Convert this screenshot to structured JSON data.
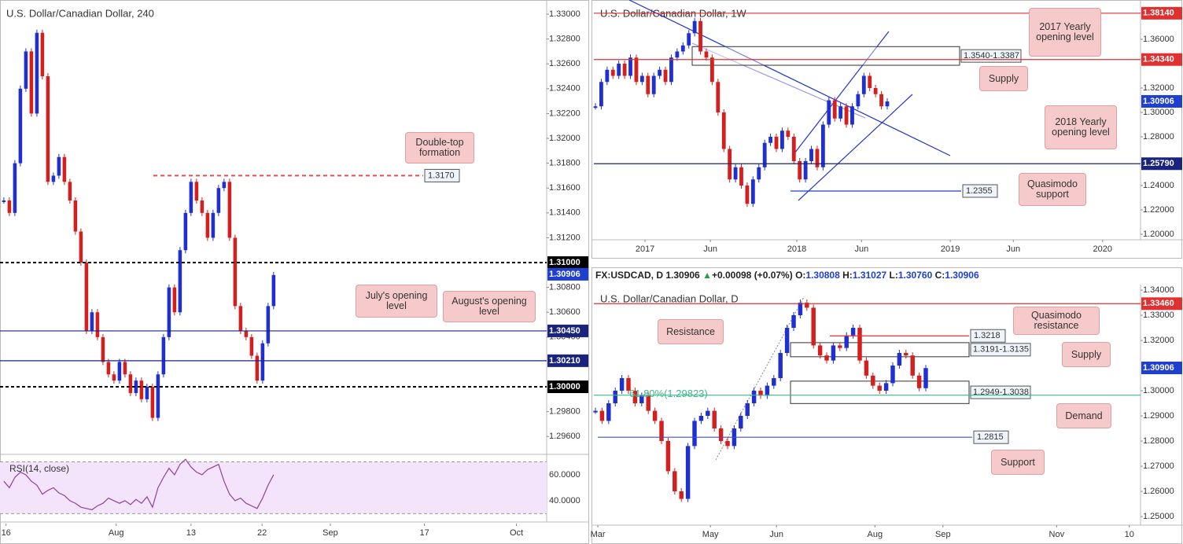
{
  "chart_data": [
    {
      "type": "candlestick",
      "title": "U.S. Dollar/Canadian Dollar, 240",
      "up_color": "#1f2fd0",
      "down_color": "#d41f1f",
      "values": [
        1.315,
        1.314,
        1.318,
        1.324,
        1.327,
        1.322,
        1.3285,
        1.325,
        1.3165,
        1.317,
        1.3185,
        1.3165,
        1.315,
        1.3125,
        1.31,
        1.3045,
        1.306,
        1.304,
        1.302,
        1.301,
        1.3005,
        1.302,
        1.301,
        1.2995,
        1.3005,
        1.299,
        1.3,
        1.2975,
        1.301,
        1.304,
        1.308,
        1.306,
        1.311,
        1.314,
        1.3165,
        1.315,
        1.314,
        1.312,
        1.314,
        1.316,
        1.3165,
        1.312,
        1.3065,
        1.3045,
        1.304,
        1.3025,
        1.3005,
        1.3035,
        1.3065,
        1.309
      ],
      "xlim": [
        -0.7,
        98.6
      ],
      "ylim": [
        1.29456,
        1.33114
      ],
      "xticks": [
        {
          "value": 0.4,
          "label": "16"
        },
        {
          "value": 20.4,
          "label": "Aug"
        },
        {
          "value": 34,
          "label": "13"
        },
        {
          "value": 46.9,
          "label": "22"
        },
        {
          "value": 59.3,
          "label": "Sep"
        },
        {
          "value": 76.4,
          "label": "17"
        },
        {
          "value": 93.1,
          "label": "Oct"
        }
      ],
      "yticks": [
        {
          "value": 1.33,
          "label": "1.33000"
        },
        {
          "value": 1.328,
          "label": "1.32800"
        },
        {
          "value": 1.326,
          "label": "1.32600"
        },
        {
          "value": 1.324,
          "label": "1.32400"
        },
        {
          "value": 1.322,
          "label": "1.32200"
        },
        {
          "value": 1.32,
          "label": "1.32000"
        },
        {
          "value": 1.318,
          "label": "1.31800"
        },
        {
          "value": 1.316,
          "label": "1.31600"
        },
        {
          "value": 1.314,
          "label": "1.31400"
        },
        {
          "value": 1.312,
          "label": "1.31200"
        },
        {
          "value": 1.308,
          "label": "1.30800"
        },
        {
          "value": 1.306,
          "label": "1.30600"
        },
        {
          "value": 1.304,
          "label": "1.30400"
        },
        {
          "value": 1.298,
          "label": "1.29800"
        },
        {
          "value": 1.296,
          "label": "1.29600"
        }
      ],
      "levels": [
        {
          "value": 1.31,
          "label": "1.31000",
          "color": "#000000",
          "style": "dashed",
          "tag": "axis"
        },
        {
          "value": 1.30906,
          "label": "1.30906",
          "color": "#1f3fd0",
          "style": "none",
          "tag": "axis"
        },
        {
          "value": 1.3045,
          "label": "1.30450",
          "color": "#1a237e",
          "style": "solid",
          "tag": "axis"
        },
        {
          "value": 1.3021,
          "label": "1.30210",
          "color": "#1a237e",
          "style": "solid",
          "tag": "axis"
        },
        {
          "value": 1.3,
          "label": "1.30000",
          "color": "#000000",
          "style": "dashed",
          "tag": "axis"
        },
        {
          "value": 1.317,
          "label": "1.3170",
          "color": "#e05050",
          "style": "dashed",
          "tag": "inline"
        }
      ],
      "zones": [],
      "annotations": [
        "Double-top formation",
        "July's opening level",
        "August's opening level"
      ],
      "rsi": {
        "label": "RSI(14, close)",
        "color": "#8e3fa0",
        "ylim": [
          26,
          72.7
        ],
        "band": [
          30,
          70
        ],
        "yticks": [
          {
            "value": 60,
            "label": "60.0000"
          },
          {
            "value": 40,
            "label": "40.0000"
          }
        ],
        "values": [
          55,
          50,
          58,
          62,
          60,
          55,
          52,
          45,
          48,
          50,
          46,
          44,
          40,
          38,
          35,
          34,
          33,
          36,
          38,
          42,
          40,
          38,
          40,
          37,
          41,
          38,
          43,
          35,
          50,
          58,
          65,
          60,
          68,
          72,
          66,
          62,
          60,
          64,
          66,
          68,
          55,
          45,
          40,
          42,
          38,
          36,
          34,
          42,
          52,
          60
        ]
      }
    },
    {
      "type": "candlestick",
      "title": "U.S. Dollar/Canadian Dollar, 1W",
      "up_color": "#1f2fd0",
      "down_color": "#d41f1f",
      "values": [
        1.305,
        1.325,
        1.335,
        1.33,
        1.34,
        1.33,
        1.345,
        1.325,
        1.33,
        1.315,
        1.33,
        1.335,
        1.325,
        1.345,
        1.35,
        1.355,
        1.365,
        1.375,
        1.35,
        1.345,
        1.325,
        1.3,
        1.27,
        1.245,
        1.255,
        1.24,
        1.225,
        1.245,
        1.255,
        1.275,
        1.28,
        1.27,
        1.285,
        1.28,
        1.26,
        1.245,
        1.26,
        1.27,
        1.255,
        1.29,
        1.31,
        1.295,
        1.305,
        1.29,
        1.305,
        1.315,
        1.33,
        1.32,
        1.315,
        1.305,
        1.309
      ],
      "xlim": [
        -0.27,
        93.4
      ],
      "ylim": [
        1.19548,
        1.39226
      ],
      "xticks": [
        {
          "value": 8.5,
          "label": "2017"
        },
        {
          "value": 19.7,
          "label": "Jun"
        },
        {
          "value": 34.5,
          "label": "2018"
        },
        {
          "value": 45.6,
          "label": "Jun"
        },
        {
          "value": 60.8,
          "label": "2019"
        },
        {
          "value": 71.6,
          "label": "Jun"
        },
        {
          "value": 86.9,
          "label": "2020"
        }
      ],
      "yticks": [
        {
          "value": 1.36,
          "label": "1.36000"
        },
        {
          "value": 1.32,
          "label": "1.32000"
        },
        {
          "value": 1.3,
          "label": "1.30000"
        },
        {
          "value": 1.28,
          "label": "1.28000"
        },
        {
          "value": 1.24,
          "label": "1.24000"
        },
        {
          "value": 1.22,
          "label": "1.22000"
        },
        {
          "value": 1.2,
          "label": "1.20000"
        }
      ],
      "levels": [
        {
          "value": 1.3814,
          "label": "1.38140",
          "color": "#e03030",
          "style": "solid",
          "tag": "axis"
        },
        {
          "value": 1.3434,
          "label": "1.34340",
          "color": "#e03030",
          "style": "solid",
          "tag": "axis"
        },
        {
          "value": 1.30906,
          "label": "1.30906",
          "color": "#1f3fd0",
          "style": "none",
          "tag": "axis"
        },
        {
          "value": 1.2579,
          "label": "1.25790",
          "color": "#1a237e",
          "style": "solid",
          "tag": "axis"
        },
        {
          "value": 1.2355,
          "label": "1.2355",
          "color": "#1f3fd0",
          "style": "solid",
          "tag": "inline"
        }
      ],
      "zones": [
        {
          "low": 1.3387,
          "high": 1.354,
          "label": "1.3540-1.3387"
        }
      ],
      "annotations": [
        "2017 Yearly opening level",
        "Supply",
        "2018 Yearly opening level",
        "Quasimodo support"
      ]
    },
    {
      "type": "candlestick",
      "title": "U.S. Dollar/Canadian Dollar, D",
      "up_color": "#1f2fd0",
      "down_color": "#d41f1f",
      "info": {
        "symbol": "FX:USDCAD, D",
        "last": "1.30906",
        "arrow": "▲",
        "change": "+0.00098 (+0.07%)",
        "ohlc": [
          {
            "key": "O:",
            "value": "1.30808"
          },
          {
            "key": "H:",
            "value": "1.31027"
          },
          {
            "key": "L:",
            "value": "1.30760"
          },
          {
            "key": "C:",
            "value": "1.30906"
          }
        ]
      },
      "values": [
        1.292,
        1.288,
        1.295,
        1.3,
        1.305,
        1.3,
        1.295,
        1.298,
        1.292,
        1.288,
        1.28,
        1.268,
        1.26,
        1.257,
        1.278,
        1.288,
        1.29,
        1.292,
        1.285,
        1.28,
        1.278,
        1.285,
        1.29,
        1.295,
        1.3,
        1.298,
        1.302,
        1.305,
        1.315,
        1.325,
        1.33,
        1.335,
        1.333,
        1.318,
        1.314,
        1.312,
        1.318,
        1.317,
        1.322,
        1.325,
        1.312,
        1.306,
        1.302,
        1.3,
        1.303,
        1.31,
        1.315,
        1.314,
        1.306,
        1.301,
        1.309
      ],
      "xlim": [
        -0.24,
        82.5
      ],
      "ylim": [
        1.24656,
        1.34219
      ],
      "xticks": [
        {
          "value": 0.36,
          "label": "Mar"
        },
        {
          "value": 17.4,
          "label": "May"
        },
        {
          "value": 27.4,
          "label": "Jun"
        },
        {
          "value": 42.3,
          "label": "Aug"
        },
        {
          "value": 52.6,
          "label": "Sep"
        },
        {
          "value": 69.8,
          "label": "Nov"
        },
        {
          "value": 80.8,
          "label": "10"
        }
      ],
      "yticks": [
        {
          "value": 1.34,
          "label": "1.34000"
        },
        {
          "value": 1.33,
          "label": "1.33000"
        },
        {
          "value": 1.32,
          "label": "1.32000"
        },
        {
          "value": 1.3,
          "label": "1.30000"
        },
        {
          "value": 1.29,
          "label": "1.29000"
        },
        {
          "value": 1.28,
          "label": "1.28000"
        },
        {
          "value": 1.27,
          "label": "1.27000"
        },
        {
          "value": 1.26,
          "label": "1.26000"
        },
        {
          "value": 1.25,
          "label": "1.25000"
        }
      ],
      "levels": [
        {
          "value": 1.3346,
          "label": "1.33460",
          "color": "#e03030",
          "style": "solid",
          "tag": "axis"
        },
        {
          "value": 1.30906,
          "label": "1.30906",
          "color": "#1f3fd0",
          "style": "none",
          "tag": "axis"
        },
        {
          "value": 1.3218,
          "label": "1.3218",
          "color": "#e03030",
          "style": "solid",
          "tag": "inline"
        },
        {
          "value": 1.2815,
          "label": "1.2815",
          "color": "#3f51d0",
          "style": "solid",
          "tag": "inline"
        },
        {
          "value": 1.29823,
          "label": "61.80%(1.29823)",
          "color": "#3cb88a",
          "style": "solid",
          "tag": "inline"
        }
      ],
      "zones": [
        {
          "low": 1.3135,
          "high": 1.3191,
          "label": "1.3191-1.3135"
        },
        {
          "low": 1.2949,
          "high": 1.3038,
          "label": "1.2949-1.3038"
        }
      ],
      "annotations": [
        "Resistance",
        "Quasimodo resistance",
        "Supply",
        "Demand",
        "Support"
      ]
    }
  ]
}
